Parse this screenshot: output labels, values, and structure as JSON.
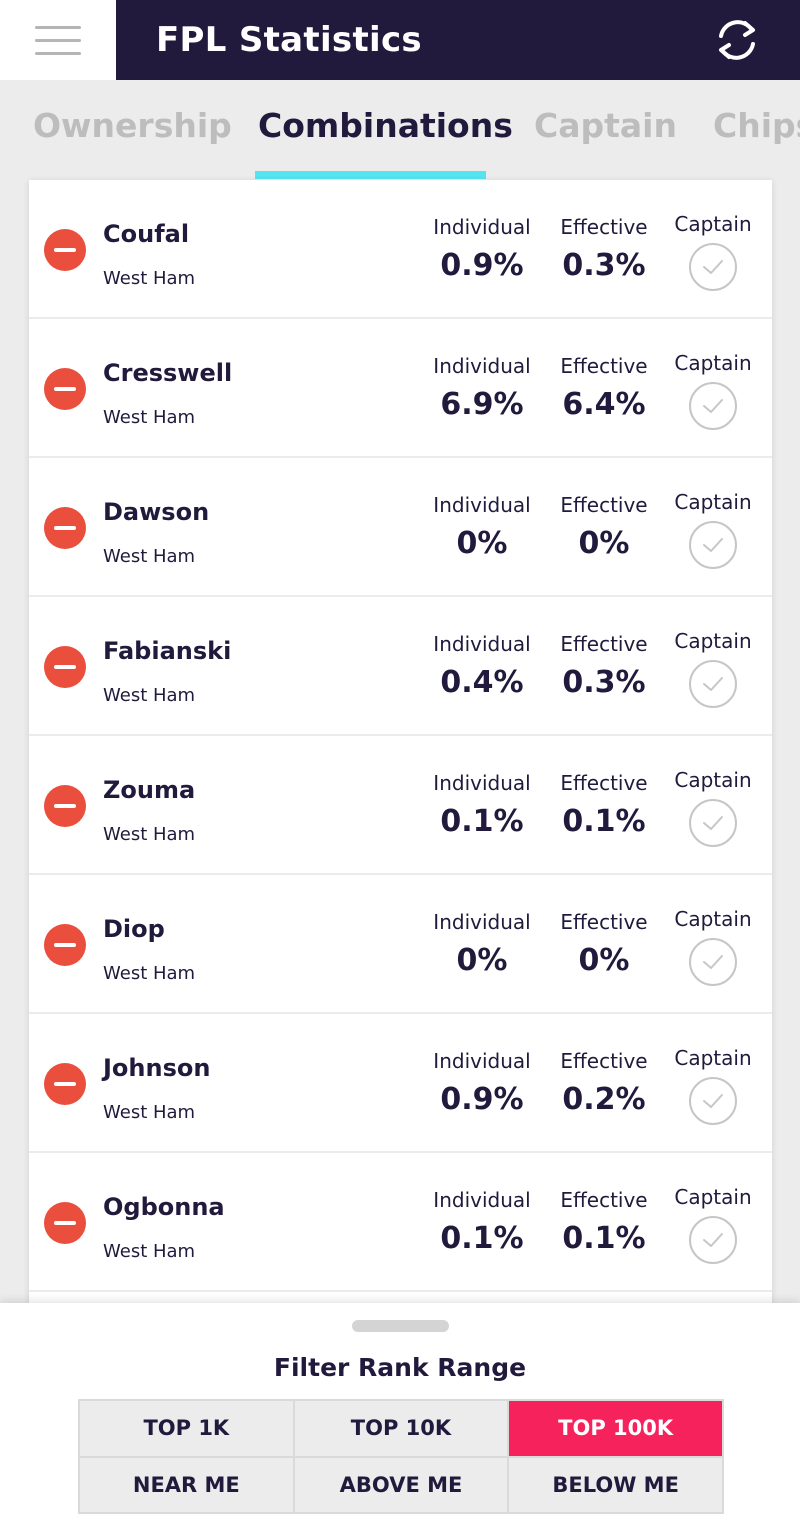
{
  "header": {
    "title": "FPL Statistics"
  },
  "tabs": [
    {
      "label": "Ownership",
      "active": false
    },
    {
      "label": "Combinations",
      "active": true
    },
    {
      "label": "Captain",
      "active": false
    },
    {
      "label": "Chips",
      "active": false
    }
  ],
  "stat_labels": {
    "individual": "Individual",
    "effective": "Effective",
    "captain": "Captain"
  },
  "players": [
    {
      "name": "Coufal",
      "team": "West Ham",
      "individual": "0.9%",
      "effective": "0.3%"
    },
    {
      "name": "Cresswell",
      "team": "West Ham",
      "individual": "6.9%",
      "effective": "6.4%"
    },
    {
      "name": "Dawson",
      "team": "West Ham",
      "individual": "0%",
      "effective": "0%"
    },
    {
      "name": "Fabianski",
      "team": "West Ham",
      "individual": "0.4%",
      "effective": "0.3%"
    },
    {
      "name": "Zouma",
      "team": "West Ham",
      "individual": "0.1%",
      "effective": "0.1%"
    },
    {
      "name": "Diop",
      "team": "West Ham",
      "individual": "0%",
      "effective": "0%"
    },
    {
      "name": "Johnson",
      "team": "West Ham",
      "individual": "0.9%",
      "effective": "0.2%"
    },
    {
      "name": "Ogbonna",
      "team": "West Ham",
      "individual": "0.1%",
      "effective": "0.1%"
    }
  ],
  "filter": {
    "title": "Filter Rank Range",
    "options": [
      {
        "label": "TOP 1K",
        "active": false
      },
      {
        "label": "TOP 10K",
        "active": false
      },
      {
        "label": "TOP 100K",
        "active": true
      },
      {
        "label": "NEAR ME",
        "active": false
      },
      {
        "label": "ABOVE ME",
        "active": false
      },
      {
        "label": "BELOW ME",
        "active": false
      }
    ]
  },
  "colors": {
    "header_bg": "#211a3c",
    "tab_underline": "#56e4f0",
    "remove": "#ea4e3d",
    "active_filter": "#f5225c"
  },
  "icons": {
    "menu": "hamburger-menu-icon",
    "refresh": "refresh-icon",
    "remove": "minus-circle-icon",
    "captain": "check-circle-icon"
  }
}
